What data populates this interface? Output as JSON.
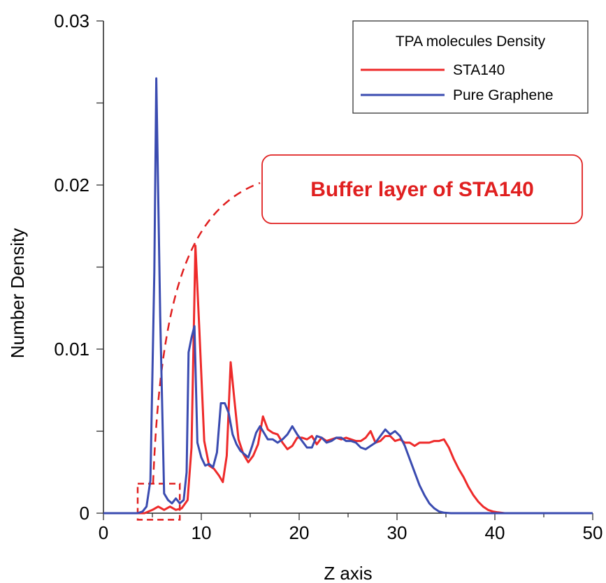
{
  "chart_data": {
    "type": "line",
    "title": "",
    "xlabel": "Z axis",
    "ylabel": "Number Density",
    "xlim": [
      0,
      50
    ],
    "ylim": [
      0,
      0.03
    ],
    "x_ticks": [
      0,
      10,
      20,
      30,
      40,
      50
    ],
    "x_tick_labels": [
      "0",
      "10",
      "20",
      "30",
      "40",
      "50"
    ],
    "y_ticks": [
      0,
      0.01,
      0.02,
      0.03
    ],
    "y_tick_labels": [
      "0",
      "0.01",
      "0.02",
      "0.03"
    ],
    "grid": false,
    "legend": {
      "title": "TPA molecules Density",
      "placement": "top-right"
    },
    "annotation": {
      "text": "Buffer layer of STA140",
      "color": "#e02020",
      "region_x": [
        3.5,
        7.8
      ],
      "region_y": [
        -0.0004,
        0.0018
      ]
    },
    "series": [
      {
        "name": "STA140",
        "color": "#ee2a2a",
        "points": [
          [
            0,
            0
          ],
          [
            2,
            0
          ],
          [
            3.5,
            0
          ],
          [
            4.2,
            0
          ],
          [
            5.0,
            0.0002
          ],
          [
            5.6,
            0.0004
          ],
          [
            6.2,
            0.0002
          ],
          [
            6.8,
            0.0004
          ],
          [
            7.4,
            0.0002
          ],
          [
            8.0,
            0.0003
          ],
          [
            8.6,
            0.0008
          ],
          [
            9.0,
            0.004
          ],
          [
            9.4,
            0.0163
          ],
          [
            9.8,
            0.0112
          ],
          [
            10.3,
            0.0044
          ],
          [
            10.8,
            0.0029
          ],
          [
            11.3,
            0.0027
          ],
          [
            11.8,
            0.0023
          ],
          [
            12.2,
            0.0019
          ],
          [
            12.6,
            0.0035
          ],
          [
            13.0,
            0.0092
          ],
          [
            13.4,
            0.0068
          ],
          [
            13.8,
            0.0045
          ],
          [
            14.3,
            0.0036
          ],
          [
            14.8,
            0.0031
          ],
          [
            15.3,
            0.0035
          ],
          [
            15.8,
            0.0042
          ],
          [
            16.3,
            0.0059
          ],
          [
            16.8,
            0.0051
          ],
          [
            17.3,
            0.0049
          ],
          [
            17.8,
            0.0048
          ],
          [
            18.3,
            0.0043
          ],
          [
            18.8,
            0.0039
          ],
          [
            19.3,
            0.0041
          ],
          [
            19.8,
            0.0046
          ],
          [
            20.3,
            0.0046
          ],
          [
            20.8,
            0.0045
          ],
          [
            21.3,
            0.0047
          ],
          [
            21.8,
            0.0042
          ],
          [
            22.3,
            0.0046
          ],
          [
            22.8,
            0.0044
          ],
          [
            23.3,
            0.0045
          ],
          [
            23.8,
            0.0046
          ],
          [
            24.3,
            0.0045
          ],
          [
            24.8,
            0.0046
          ],
          [
            25.3,
            0.0045
          ],
          [
            25.8,
            0.0044
          ],
          [
            26.3,
            0.0044
          ],
          [
            26.8,
            0.0046
          ],
          [
            27.3,
            0.005
          ],
          [
            27.8,
            0.0043
          ],
          [
            28.3,
            0.0044
          ],
          [
            28.8,
            0.0047
          ],
          [
            29.3,
            0.0047
          ],
          [
            29.8,
            0.0044
          ],
          [
            30.3,
            0.0045
          ],
          [
            30.8,
            0.0043
          ],
          [
            31.3,
            0.0043
          ],
          [
            31.8,
            0.0041
          ],
          [
            32.3,
            0.0043
          ],
          [
            32.8,
            0.0043
          ],
          [
            33.3,
            0.0043
          ],
          [
            33.8,
            0.0044
          ],
          [
            34.3,
            0.0044
          ],
          [
            34.8,
            0.0045
          ],
          [
            35.3,
            0.004
          ],
          [
            35.8,
            0.0033
          ],
          [
            36.3,
            0.0027
          ],
          [
            36.8,
            0.0022
          ],
          [
            37.3,
            0.0016
          ],
          [
            37.8,
            0.0011
          ],
          [
            38.3,
            0.0007
          ],
          [
            38.8,
            0.0004
          ],
          [
            39.3,
            0.0002
          ],
          [
            39.8,
            0.0001
          ],
          [
            40.3,
            5e-05
          ],
          [
            41,
            0
          ],
          [
            42,
            0
          ],
          [
            45,
            0
          ],
          [
            50,
            0
          ]
        ]
      },
      {
        "name": "Pure Graphene",
        "color": "#3a4bb0",
        "points": [
          [
            0,
            0
          ],
          [
            2,
            0
          ],
          [
            3.5,
            0
          ],
          [
            4.0,
            0.0001
          ],
          [
            4.4,
            0.0004
          ],
          [
            4.8,
            0.002
          ],
          [
            5.2,
            0.0147
          ],
          [
            5.4,
            0.0265
          ],
          [
            5.8,
            0.012
          ],
          [
            6.2,
            0.0012
          ],
          [
            6.6,
            0.0008
          ],
          [
            7.0,
            0.0006
          ],
          [
            7.4,
            0.0009
          ],
          [
            7.8,
            0.0006
          ],
          [
            8.2,
            0.0008
          ],
          [
            8.5,
            0.0025
          ],
          [
            8.7,
            0.0098
          ],
          [
            9.0,
            0.0107
          ],
          [
            9.3,
            0.0114
          ],
          [
            9.6,
            0.0043
          ],
          [
            10.0,
            0.0034
          ],
          [
            10.4,
            0.0029
          ],
          [
            10.8,
            0.003
          ],
          [
            11.2,
            0.0028
          ],
          [
            11.6,
            0.0037
          ],
          [
            12.0,
            0.0067
          ],
          [
            12.4,
            0.0067
          ],
          [
            12.8,
            0.0061
          ],
          [
            13.2,
            0.0048
          ],
          [
            13.6,
            0.0042
          ],
          [
            14.0,
            0.0038
          ],
          [
            14.4,
            0.0036
          ],
          [
            14.8,
            0.0034
          ],
          [
            15.2,
            0.0041
          ],
          [
            15.6,
            0.0049
          ],
          [
            16.0,
            0.0053
          ],
          [
            16.4,
            0.0049
          ],
          [
            16.8,
            0.0045
          ],
          [
            17.3,
            0.0045
          ],
          [
            17.8,
            0.0043
          ],
          [
            18.3,
            0.0045
          ],
          [
            18.8,
            0.0048
          ],
          [
            19.3,
            0.0053
          ],
          [
            19.8,
            0.0048
          ],
          [
            20.3,
            0.0044
          ],
          [
            20.8,
            0.004
          ],
          [
            21.3,
            0.004
          ],
          [
            21.8,
            0.0047
          ],
          [
            22.3,
            0.0046
          ],
          [
            22.8,
            0.0043
          ],
          [
            23.3,
            0.0044
          ],
          [
            23.8,
            0.0046
          ],
          [
            24.3,
            0.0046
          ],
          [
            24.8,
            0.0044
          ],
          [
            25.3,
            0.0044
          ],
          [
            25.8,
            0.0043
          ],
          [
            26.3,
            0.004
          ],
          [
            26.8,
            0.0039
          ],
          [
            27.3,
            0.0041
          ],
          [
            27.8,
            0.0043
          ],
          [
            28.3,
            0.0047
          ],
          [
            28.8,
            0.0051
          ],
          [
            29.3,
            0.0048
          ],
          [
            29.8,
            0.005
          ],
          [
            30.3,
            0.0047
          ],
          [
            30.8,
            0.0041
          ],
          [
            31.3,
            0.0033
          ],
          [
            31.8,
            0.0025
          ],
          [
            32.3,
            0.0017
          ],
          [
            32.8,
            0.0011
          ],
          [
            33.3,
            0.0006
          ],
          [
            33.8,
            0.0003
          ],
          [
            34.3,
            0.0001
          ],
          [
            34.8,
            3e-05
          ],
          [
            35.5,
            0
          ],
          [
            40,
            0
          ],
          [
            45,
            0
          ],
          [
            50,
            0
          ]
        ]
      }
    ]
  }
}
